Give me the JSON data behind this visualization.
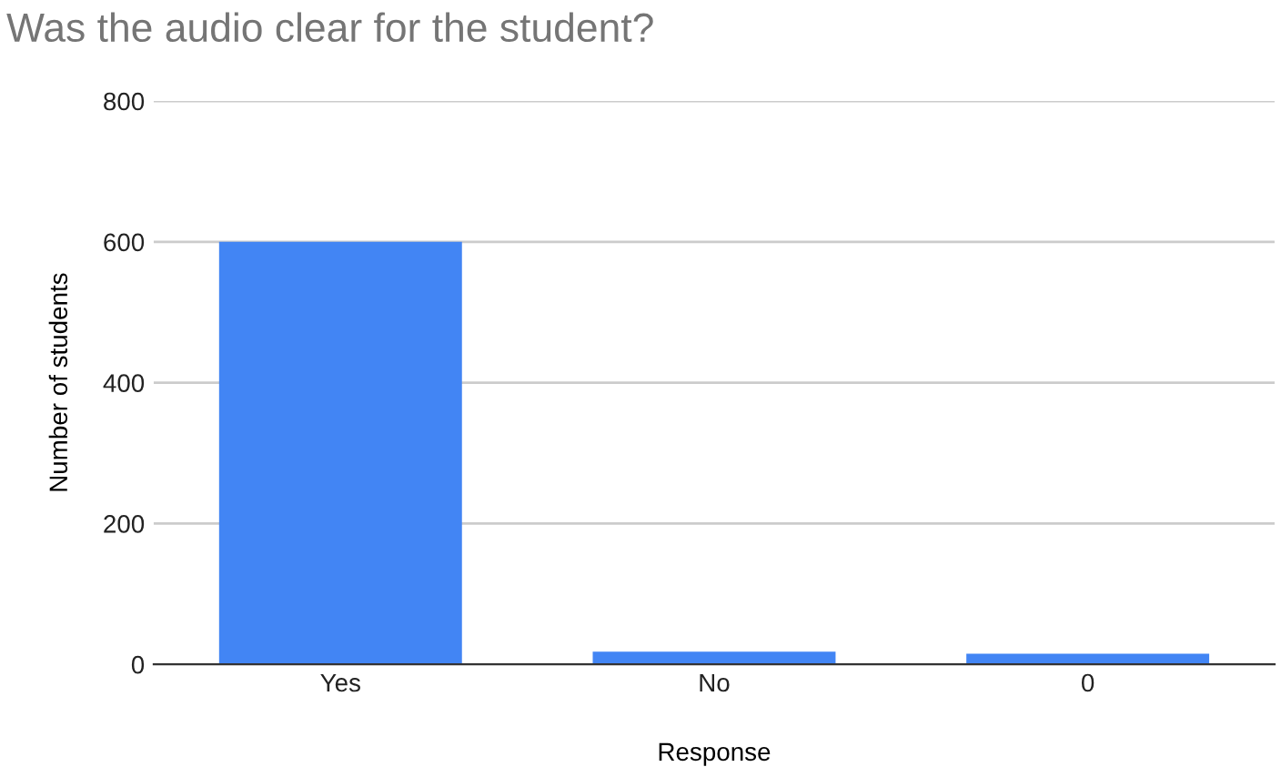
{
  "chart_data": {
    "type": "bar",
    "title": "Was the audio clear for the student?",
    "xlabel": "Response",
    "ylabel": "Number of students",
    "categories": [
      "Yes",
      "No",
      "0"
    ],
    "values": [
      600,
      18,
      15
    ],
    "color": "#4285f4",
    "ylim": [
      0,
      800
    ],
    "yticks": [
      0,
      200,
      400,
      600,
      800
    ],
    "grid": "y",
    "legend": false
  }
}
